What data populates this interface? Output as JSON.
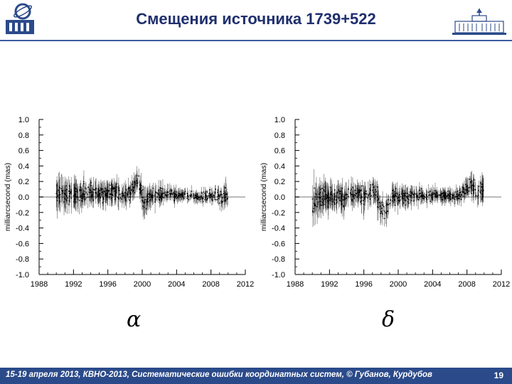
{
  "header": {
    "title": "Смещения источника 1739+522"
  },
  "footer": {
    "text": "15-19 апреля 2013, КВНО-2013, Систематические ошибки координатных систем, © Губанов, Курдубов",
    "page": "19"
  },
  "colors": {
    "header_line": "#3d5a9e",
    "title": "#1f2f6e",
    "footer_bg": "#2b4a8a",
    "data": "#000000",
    "zero_line": "#bbbbbb"
  },
  "chart_data": [
    {
      "type": "scatter",
      "symbol": "α",
      "ylabel": "milliarcsecond (mas)",
      "xlim": [
        1988,
        2012
      ],
      "ylim": [
        -1.0,
        1.0
      ],
      "x_ticks": [
        "1988",
        "1992",
        "1996",
        "2000",
        "2004",
        "2008",
        "2012"
      ],
      "y_ticks": [
        "1.0",
        "0.8",
        "0.6",
        "0.4",
        "0.2",
        "0.0",
        "-0.2",
        "-0.4",
        "-0.6",
        "-0.8",
        "-1.0"
      ],
      "zero_line": true,
      "profile": [
        [
          1990.0,
          0.02,
          0.3,
          0.15
        ],
        [
          1990.5,
          0.05,
          0.28,
          0.14
        ],
        [
          1991.0,
          0.04,
          0.3,
          0.13
        ],
        [
          1991.5,
          0.06,
          0.26,
          0.12
        ],
        [
          1992.0,
          0.05,
          0.28,
          0.12
        ],
        [
          1992.5,
          0.04,
          0.25,
          0.11
        ],
        [
          1993.0,
          0.05,
          0.24,
          0.11
        ],
        [
          1993.5,
          0.04,
          0.24,
          0.1
        ],
        [
          1994.0,
          0.05,
          0.22,
          0.1
        ],
        [
          1994.5,
          0.04,
          0.22,
          0.1
        ],
        [
          1995.0,
          0.05,
          0.2,
          0.09
        ],
        [
          1995.5,
          0.04,
          0.2,
          0.09
        ],
        [
          1996.0,
          0.06,
          0.22,
          0.1
        ],
        [
          1996.5,
          0.07,
          0.2,
          0.09
        ],
        [
          1997.0,
          0.08,
          0.2,
          0.09
        ],
        [
          1997.5,
          0.05,
          0.2,
          0.09
        ],
        [
          1998.0,
          0.0,
          0.22,
          0.1
        ],
        [
          1998.5,
          0.04,
          0.2,
          0.09
        ],
        [
          1999.0,
          0.14,
          0.18,
          0.08
        ],
        [
          1999.5,
          0.24,
          0.2,
          0.09
        ],
        [
          1999.8,
          0.1,
          0.2,
          0.09
        ],
        [
          2000.0,
          -0.05,
          0.3,
          0.14
        ],
        [
          2000.3,
          -0.1,
          0.28,
          0.13
        ],
        [
          2000.6,
          -0.04,
          0.24,
          0.11
        ],
        [
          2001.0,
          0.0,
          0.22,
          0.1
        ],
        [
          2001.5,
          0.03,
          0.2,
          0.09
        ],
        [
          2002.0,
          0.04,
          0.18,
          0.08
        ],
        [
          2003.0,
          0.03,
          0.16,
          0.07
        ],
        [
          2004.0,
          0.02,
          0.12,
          0.06
        ],
        [
          2005.0,
          0.02,
          0.1,
          0.05
        ],
        [
          2006.0,
          0.01,
          0.1,
          0.05
        ],
        [
          2007.0,
          0.01,
          0.12,
          0.05
        ],
        [
          2008.0,
          0.02,
          0.14,
          0.06
        ],
        [
          2008.5,
          0.02,
          0.18,
          0.07
        ],
        [
          2009.0,
          0.0,
          0.2,
          0.08
        ],
        [
          2009.5,
          0.0,
          0.22,
          0.09
        ],
        [
          2010.0,
          -0.01,
          0.26,
          0.1
        ]
      ]
    },
    {
      "type": "scatter",
      "symbol": "δ",
      "ylabel": "milliarcsecond (mas)",
      "xlim": [
        1988,
        2012
      ],
      "ylim": [
        -1.0,
        1.0
      ],
      "x_ticks": [
        "1988",
        "1992",
        "1996",
        "2000",
        "2004",
        "2008",
        "2012"
      ],
      "y_ticks": [
        "1.0",
        "0.8",
        "0.6",
        "0.4",
        "0.2",
        "0.0",
        "-0.2",
        "-0.4",
        "-0.6",
        "-0.8",
        "-1.0"
      ],
      "zero_line": true,
      "profile": [
        [
          1990.0,
          -0.1,
          0.3,
          0.15
        ],
        [
          1990.5,
          -0.05,
          0.28,
          0.14
        ],
        [
          1991.0,
          0.0,
          0.26,
          0.13
        ],
        [
          1991.5,
          0.0,
          0.24,
          0.12
        ],
        [
          1992.0,
          0.0,
          0.24,
          0.12
        ],
        [
          1992.5,
          -0.02,
          0.22,
          0.11
        ],
        [
          1993.0,
          0.0,
          0.22,
          0.11
        ],
        [
          1993.5,
          0.0,
          0.24,
          0.11
        ],
        [
          1994.0,
          0.0,
          0.22,
          0.1
        ],
        [
          1994.5,
          0.02,
          0.22,
          0.1
        ],
        [
          1995.0,
          0.05,
          0.24,
          0.1
        ],
        [
          1995.5,
          0.05,
          0.22,
          0.1
        ],
        [
          1996.0,
          0.0,
          0.26,
          0.12
        ],
        [
          1996.5,
          0.05,
          0.24,
          0.11
        ],
        [
          1997.0,
          0.1,
          0.22,
          0.1
        ],
        [
          1997.5,
          0.05,
          0.24,
          0.11
        ],
        [
          1998.0,
          -0.15,
          0.24,
          0.11
        ],
        [
          1998.5,
          -0.2,
          0.24,
          0.11
        ],
        [
          1999.0,
          -0.08,
          0.22,
          0.1
        ],
        [
          1999.5,
          0.0,
          0.2,
          0.09
        ],
        [
          2000.0,
          0.0,
          0.2,
          0.09
        ],
        [
          2000.5,
          0.0,
          0.18,
          0.08
        ],
        [
          2001.0,
          0.0,
          0.18,
          0.08
        ],
        [
          2001.5,
          0.02,
          0.18,
          0.08
        ],
        [
          2002.0,
          0.02,
          0.18,
          0.08
        ],
        [
          2003.0,
          0.02,
          0.16,
          0.07
        ],
        [
          2004.0,
          0.02,
          0.14,
          0.06
        ],
        [
          2005.0,
          0.01,
          0.12,
          0.06
        ],
        [
          2006.0,
          0.01,
          0.12,
          0.06
        ],
        [
          2007.0,
          0.02,
          0.14,
          0.06
        ],
        [
          2008.0,
          0.1,
          0.2,
          0.08
        ],
        [
          2008.5,
          0.14,
          0.22,
          0.09
        ],
        [
          2009.0,
          0.1,
          0.22,
          0.09
        ],
        [
          2009.5,
          0.08,
          0.22,
          0.09
        ],
        [
          2010.0,
          0.05,
          0.24,
          0.1
        ]
      ]
    }
  ]
}
